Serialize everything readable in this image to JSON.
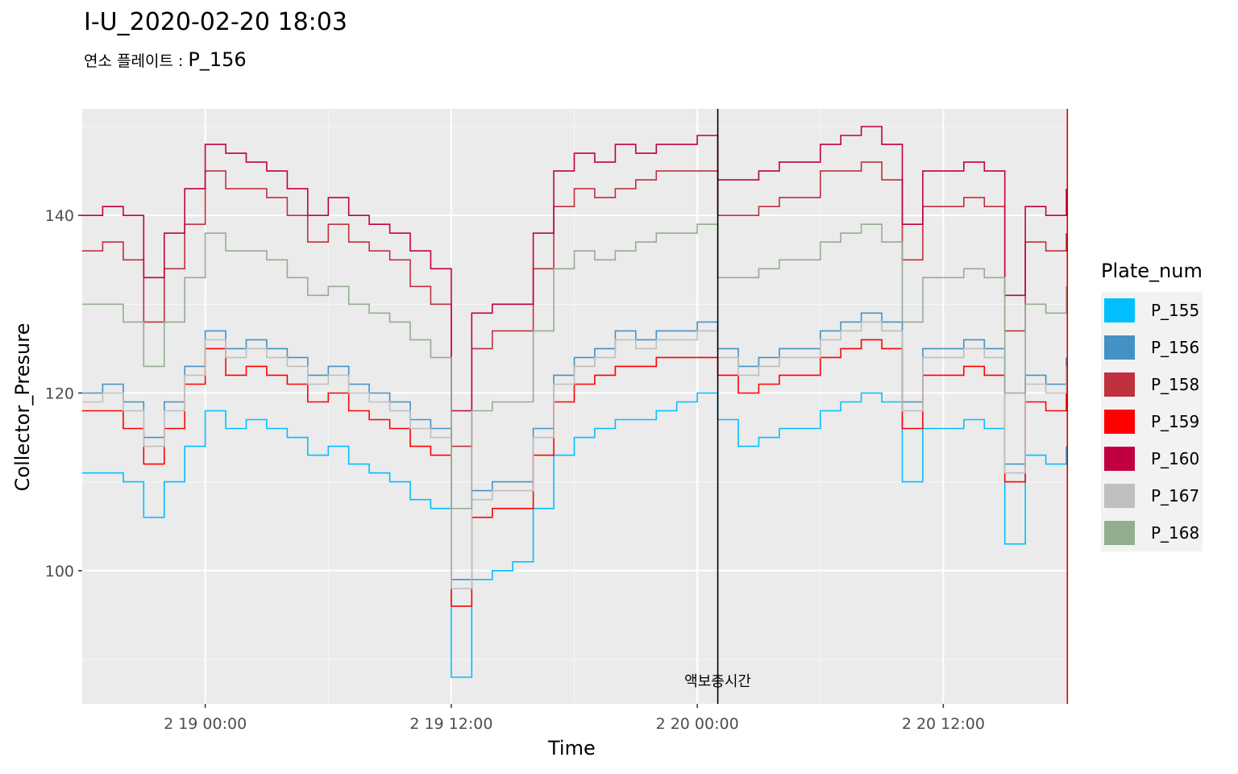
{
  "title": "I-U_2020-02-20 18:03",
  "subtitle": {
    "label": "연소 플레이트 :",
    "value": "P_156"
  },
  "chart_data": {
    "type": "line",
    "xlabel": "Time",
    "ylabel": "Collector_Presure",
    "x_ticks": [
      "2 19 00:00",
      "2 19 12:00",
      "2 20 00:00",
      "2 20 12:00"
    ],
    "y_ticks": [
      100,
      120,
      140
    ],
    "x_range_hours": [
      -6,
      42
    ],
    "ylim": [
      85,
      152
    ],
    "x_range": [
      "2 18 18:00",
      "2 20 18:03"
    ],
    "grid": true,
    "legend": {
      "title": "Plate_num",
      "position": "right"
    },
    "annotations": [
      {
        "label": "액보충시간",
        "x": "2 20 01:00",
        "line_color": "#000000"
      },
      {
        "label": "",
        "x": "2 20 18:03",
        "line_color": "#cc0000"
      }
    ],
    "x_hours": [
      -6,
      -5,
      -4,
      -3,
      -2,
      -1,
      0,
      1,
      2,
      3,
      4,
      5,
      6,
      7,
      8,
      9,
      10,
      11,
      12,
      13,
      14,
      15,
      16,
      17,
      18,
      19,
      20,
      21,
      22,
      23,
      24,
      25,
      26,
      27,
      28,
      29,
      30,
      31,
      32,
      33,
      34,
      35,
      36,
      37,
      38,
      39,
      40,
      41,
      42
    ],
    "series": [
      {
        "name": "P_155",
        "color": "#00bfff",
        "values": [
          111,
          111,
          110,
          106,
          110,
          114,
          118,
          116,
          117,
          116,
          115,
          113,
          114,
          112,
          111,
          110,
          108,
          107,
          88,
          99,
          100,
          101,
          107,
          113,
          115,
          116,
          117,
          117,
          118,
          119,
          120,
          117,
          114,
          115,
          116,
          116,
          118,
          119,
          120,
          119,
          110,
          116,
          116,
          117,
          116,
          103,
          113,
          112,
          114
        ]
      },
      {
        "name": "P_156",
        "color": "#4292c6",
        "values": [
          120,
          121,
          119,
          115,
          119,
          123,
          127,
          125,
          126,
          125,
          124,
          122,
          123,
          121,
          120,
          119,
          117,
          116,
          99,
          109,
          110,
          110,
          116,
          122,
          124,
          125,
          127,
          126,
          127,
          127,
          128,
          125,
          123,
          124,
          125,
          125,
          127,
          128,
          129,
          128,
          119,
          125,
          125,
          126,
          125,
          112,
          122,
          121,
          124
        ]
      },
      {
        "name": "P_158",
        "color": "#c0303e",
        "values": [
          136,
          137,
          135,
          128,
          134,
          139,
          145,
          143,
          143,
          142,
          140,
          137,
          139,
          137,
          136,
          135,
          132,
          130,
          114,
          125,
          127,
          127,
          134,
          141,
          143,
          142,
          143,
          144,
          145,
          145,
          145,
          140,
          140,
          141,
          142,
          142,
          145,
          145,
          146,
          144,
          135,
          141,
          141,
          142,
          141,
          127,
          137,
          136,
          138
        ]
      },
      {
        "name": "P_159",
        "color": "#ff0000",
        "values": [
          118,
          118,
          116,
          112,
          116,
          121,
          125,
          122,
          123,
          122,
          121,
          119,
          120,
          118,
          117,
          116,
          114,
          113,
          96,
          106,
          107,
          107,
          113,
          119,
          121,
          122,
          123,
          123,
          124,
          124,
          124,
          122,
          120,
          121,
          122,
          122,
          124,
          125,
          126,
          125,
          116,
          122,
          122,
          123,
          122,
          110,
          119,
          118,
          120
        ]
      },
      {
        "name": "P_160",
        "color": "#c2003f",
        "values": [
          140,
          141,
          140,
          133,
          138,
          143,
          148,
          147,
          146,
          145,
          143,
          140,
          142,
          140,
          139,
          138,
          136,
          134,
          118,
          129,
          130,
          130,
          138,
          145,
          147,
          146,
          148,
          147,
          148,
          148,
          149,
          144,
          144,
          145,
          146,
          146,
          148,
          149,
          150,
          148,
          139,
          145,
          145,
          146,
          145,
          131,
          141,
          140,
          143
        ]
      },
      {
        "name": "P_167",
        "color": "#bfbfbf",
        "values": [
          119,
          120,
          118,
          114,
          118,
          122,
          126,
          124,
          125,
          124,
          123,
          121,
          122,
          120,
          119,
          118,
          116,
          115,
          98,
          108,
          109,
          109,
          115,
          121,
          123,
          124,
          126,
          125,
          126,
          126,
          127,
          124,
          122,
          123,
          124,
          124,
          126,
          127,
          128,
          127,
          118,
          124,
          124,
          125,
          124,
          111,
          121,
          120,
          123
        ]
      },
      {
        "name": "P_168",
        "color": "#94ad91",
        "values": [
          130,
          130,
          128,
          123,
          128,
          133,
          138,
          136,
          136,
          135,
          133,
          131,
          132,
          130,
          129,
          128,
          126,
          124,
          107,
          118,
          119,
          119,
          127,
          134,
          136,
          135,
          136,
          137,
          138,
          138,
          139,
          133,
          133,
          134,
          135,
          135,
          137,
          138,
          139,
          137,
          128,
          133,
          133,
          134,
          133,
          120,
          130,
          129,
          132
        ]
      }
    ]
  }
}
